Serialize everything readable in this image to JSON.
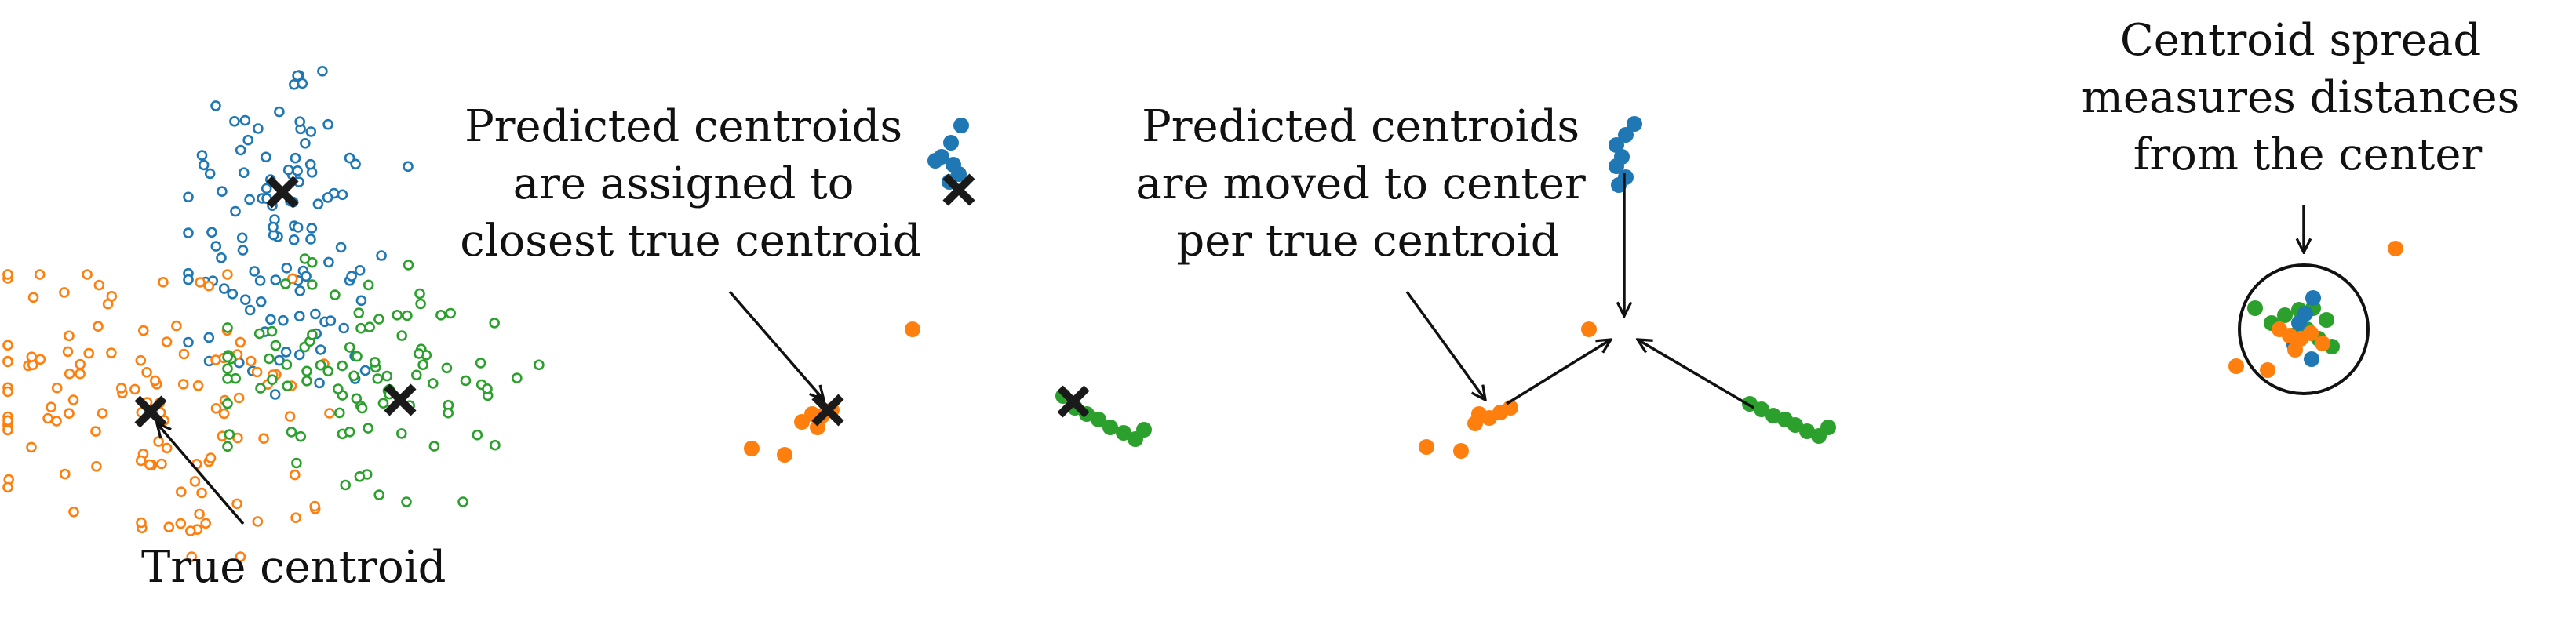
{
  "colors": {
    "blue": "#1f77b4",
    "orange": "#ff7f0e",
    "green": "#2ca02c",
    "ink": "#111111",
    "marker": "#1a1a1a"
  },
  "labels": {
    "true_centroid": "True centroid",
    "assigned": [
      "Predicted centroids",
      "are assigned to",
      "closest true centroid"
    ],
    "moved": [
      "Predicted centroids",
      "are moved to center",
      "per true centroid"
    ],
    "spread": [
      "Centroid spread",
      "measures distances",
      "from the center"
    ]
  }
}
